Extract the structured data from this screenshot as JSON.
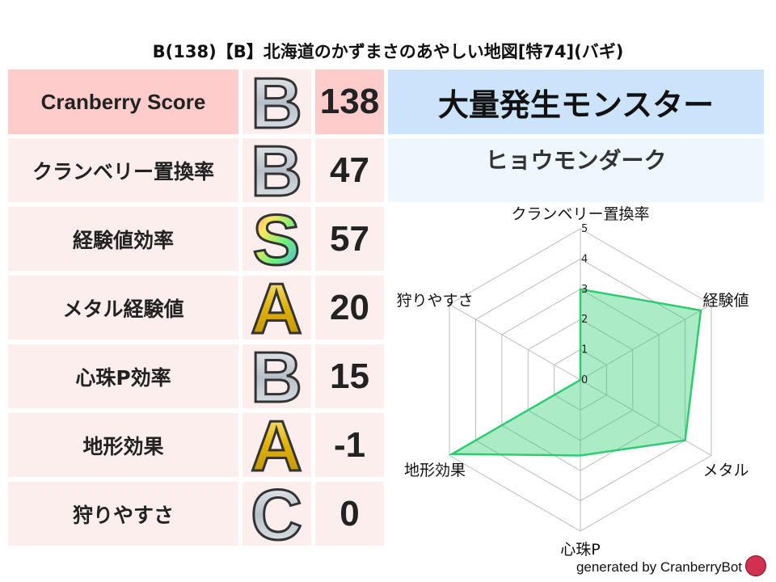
{
  "title": "B(138)【B】北海道のかずまさのあやしい地図[特74](バギ)",
  "score_header": {
    "label": "Cranberry Score",
    "grade": "B",
    "score": "138"
  },
  "rows": [
    {
      "label": "クランベリー置換率",
      "grade": "B",
      "score": "47"
    },
    {
      "label": "経験値効率",
      "grade": "S",
      "score": "57"
    },
    {
      "label": "メタル経験値",
      "grade": "A",
      "score": "20"
    },
    {
      "label": "心珠P効率",
      "grade": "B",
      "score": "15"
    },
    {
      "label": "地形効果",
      "grade": "A",
      "score": "-1"
    },
    {
      "label": "狩りやすさ",
      "grade": "C",
      "score": "0"
    }
  ],
  "monster": {
    "header": "大量発生モンスター",
    "name": "ヒョウモンダーク"
  },
  "chart_data": {
    "type": "radar",
    "axes": [
      "クランベリー置換率",
      "経験値",
      "メタル",
      "心珠P",
      "地形効果",
      "狩りやすさ"
    ],
    "values": [
      3,
      4.6,
      4,
      2.5,
      4.9,
      0
    ],
    "range": [
      0,
      5
    ],
    "ticks": [
      "0",
      "1",
      "2",
      "3",
      "4",
      "5"
    ],
    "color": "#2ecc71",
    "fill": "#2ecc71"
  },
  "footer": {
    "text": "generated by CranberryBot",
    "icon": "cranberry-bot-icon"
  }
}
